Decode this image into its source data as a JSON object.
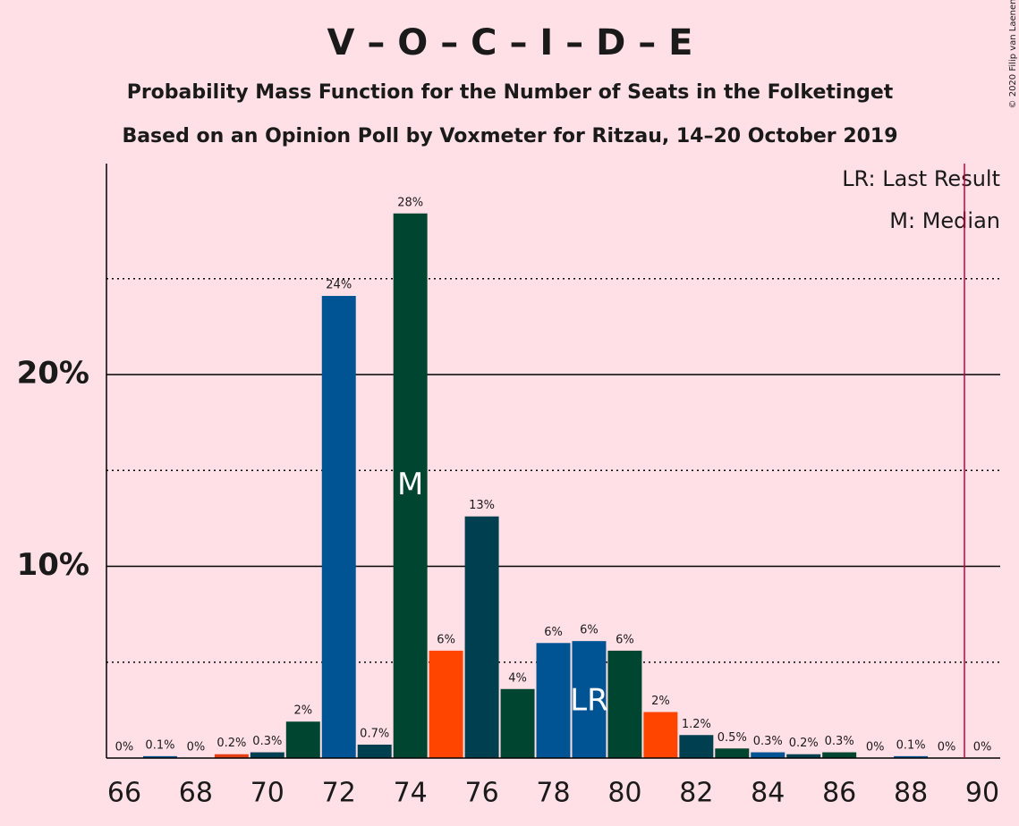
{
  "chart_data": {
    "type": "bar",
    "title": "V – O – C – I – D – E",
    "subtitle": "Probability Mass Function for the Number of Seats in the Folketinget",
    "subtitle2": "Based on an Opinion Poll by Voxmeter for Ritzau, 14–20 October 2019",
    "credit": "© 2020 Filip van Laenen",
    "x": [
      66,
      67,
      68,
      69,
      70,
      71,
      72,
      73,
      74,
      75,
      76,
      77,
      78,
      79,
      80,
      81,
      82,
      83,
      84,
      85,
      86,
      87,
      88,
      89,
      90
    ],
    "values": [
      0,
      0.1,
      0,
      0.2,
      0.3,
      1.9,
      24.1,
      0.7,
      28.4,
      5.6,
      12.6,
      3.6,
      6.0,
      6.1,
      5.6,
      2.4,
      1.2,
      0.5,
      0.3,
      0.2,
      0.3,
      0,
      0.1,
      0,
      0
    ],
    "value_labels": [
      "0%",
      "0.1%",
      "0%",
      "0.2%",
      "0.3%",
      "2%",
      "24%",
      "0.7%",
      "28%",
      "6%",
      "13%",
      "4%",
      "6%",
      "6%",
      "6%",
      "2%",
      "1.2%",
      "0.5%",
      "0.3%",
      "0.2%",
      "0.3%",
      "0%",
      "0.1%",
      "0%",
      "0%"
    ],
    "colors": [
      "#005494",
      "#005494",
      "#e63e14",
      "#e63e14",
      "#003f4f",
      "#00452f",
      "#005494",
      "#003f4f",
      "#00452f",
      "#ff4500",
      "#003f4f",
      "#00452f",
      "#005494",
      "#005494",
      "#00452f",
      "#ff4500",
      "#003f4f",
      "#00452f",
      "#005494",
      "#003f4f",
      "#00452f",
      "#00452f",
      "#005494",
      "#005494",
      "#003f4f"
    ],
    "xlim": [
      65.5,
      90.5
    ],
    "xticks": [
      66,
      68,
      70,
      72,
      74,
      76,
      78,
      80,
      82,
      84,
      86,
      88,
      90
    ],
    "ylim": [
      0,
      31
    ],
    "yticks": [
      {
        "value": 10,
        "label": "10%"
      },
      {
        "value": 20,
        "label": "20%"
      }
    ],
    "minor_yticks": [
      5,
      15,
      25
    ],
    "grid": true,
    "threshold_x": 89.5,
    "annotations": [
      {
        "text": "M",
        "x": 74
      },
      {
        "text": "LR",
        "x": 79
      }
    ],
    "legend": [
      "LR: Last Result",
      "M: Median"
    ]
  }
}
